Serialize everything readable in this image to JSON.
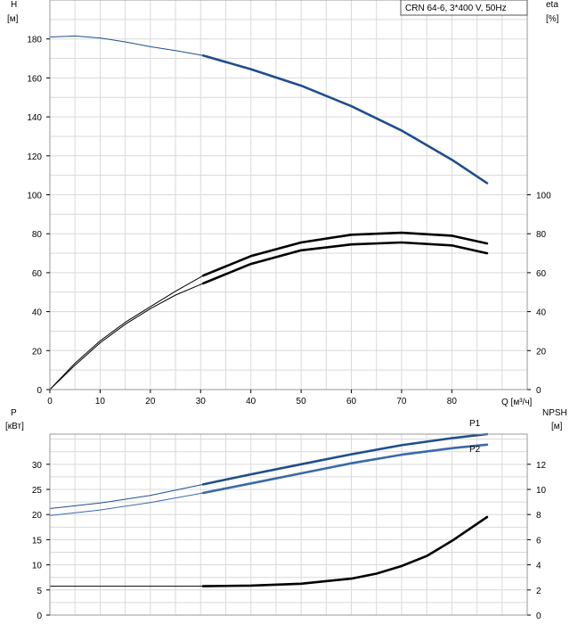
{
  "chart_data": [
    {
      "type": "line",
      "title": "CRN 64-6, 3*400 V, 50Hz",
      "xlabel": "Q [м³/ч]",
      "xlim": [
        0,
        95
      ],
      "x_ticks": [
        0,
        10,
        20,
        30,
        40,
        50,
        60,
        70,
        80
      ],
      "left_axis": {
        "label_top": "H",
        "label_unit": "[м]",
        "lim": [
          0,
          200
        ],
        "ticks": [
          0,
          20,
          40,
          60,
          80,
          100,
          120,
          140,
          160,
          180
        ]
      },
      "right_axis": {
        "label_top": "eta",
        "label_unit": "[%]",
        "lim": [
          0,
          200
        ],
        "ticks": [
          0,
          20,
          40,
          60,
          80,
          100
        ]
      },
      "grid": true,
      "series": [
        {
          "axis": "left",
          "color": "#1f4e8c",
          "thin_until": 30.5,
          "x": [
            0,
            5,
            10,
            15,
            20,
            25,
            30.5,
            40,
            50,
            60,
            70,
            80,
            87
          ],
          "y": [
            181,
            181.5,
            180.5,
            178.5,
            176,
            174,
            171.5,
            164.5,
            156,
            145.5,
            133,
            118,
            106
          ]
        },
        {
          "axis": "right",
          "color": "#000000",
          "thin_until": 30.5,
          "x": [
            0,
            5,
            10,
            15,
            20,
            25,
            30.5,
            40,
            50,
            60,
            70,
            80,
            87
          ],
          "y": [
            0,
            13.5,
            25,
            34.5,
            42.5,
            50.5,
            58.5,
            68.5,
            75.5,
            79.5,
            80.5,
            79,
            75
          ]
        },
        {
          "axis": "right",
          "color": "#000000",
          "thin_until": 30.5,
          "x": [
            0,
            5,
            10,
            15,
            20,
            25,
            30.5,
            40,
            50,
            60,
            70,
            80,
            87
          ],
          "y": [
            0,
            12.5,
            24,
            33.5,
            41.5,
            48.5,
            54.5,
            64.5,
            71.5,
            74.5,
            75.5,
            74,
            70
          ]
        }
      ]
    },
    {
      "type": "line",
      "xlim": [
        0,
        95
      ],
      "x_ticks": [],
      "left_axis": {
        "label_top": "P",
        "label_unit": "[кВт]",
        "lim": [
          0,
          36
        ],
        "ticks": [
          0,
          5,
          10,
          15,
          20,
          25,
          30
        ]
      },
      "right_axis": {
        "label_top": "NPSH",
        "label_unit": "[м]",
        "lim": [
          0,
          14.4
        ],
        "ticks": [
          0,
          2,
          4,
          6,
          8,
          10,
          12
        ]
      },
      "grid": true,
      "series": [
        {
          "name": "P1",
          "axis": "left",
          "color": "#1f4e8c",
          "thin_until": 30.5,
          "x": [
            0,
            10,
            20,
            30.5,
            40,
            50,
            60,
            70,
            80,
            87
          ],
          "y": [
            21.2,
            22.3,
            23.8,
            26,
            28,
            30,
            32,
            33.8,
            35.2,
            36
          ]
        },
        {
          "name": "P2",
          "axis": "left",
          "color": "#3a6aaa",
          "thin_until": 30.5,
          "x": [
            0,
            10,
            20,
            30.5,
            40,
            50,
            60,
            70,
            80,
            87
          ],
          "y": [
            19.8,
            20.9,
            22.4,
            24.3,
            26.2,
            28.2,
            30.2,
            31.9,
            33.2,
            33.9
          ]
        },
        {
          "axis": "right",
          "color": "#000000",
          "thin_until": 30.5,
          "x": [
            0,
            10,
            20,
            30.5,
            40,
            50,
            60,
            65,
            70,
            75,
            80,
            87
          ],
          "y": [
            2.3,
            2.3,
            2.3,
            2.3,
            2.35,
            2.5,
            2.9,
            3.3,
            3.9,
            4.7,
            5.9,
            7.8
          ]
        }
      ]
    }
  ]
}
